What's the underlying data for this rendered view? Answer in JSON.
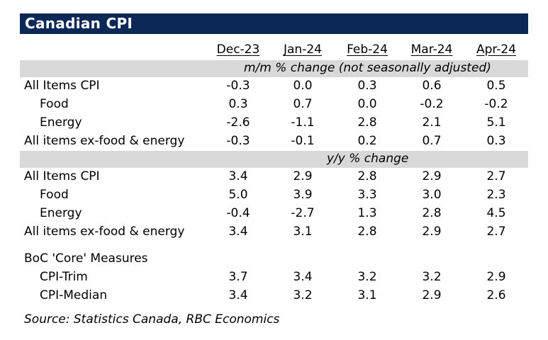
{
  "title": "Canadian CPI",
  "columns": [
    "Dec-23",
    "Jan-24",
    "Feb-24",
    "Mar-24",
    "Apr-24"
  ],
  "sections": [
    {
      "band_label": "m/m % change (not seasonally adjusted)",
      "rows": [
        {
          "label": "All Items CPI",
          "indent": false,
          "values": [
            "-0.3",
            "0.0",
            "0.3",
            "0.6",
            "0.5"
          ]
        },
        {
          "label": "Food",
          "indent": true,
          "values": [
            "0.3",
            "0.7",
            "0.0",
            "-0.2",
            "-0.2"
          ]
        },
        {
          "label": "Energy",
          "indent": true,
          "values": [
            "-2.6",
            "-1.1",
            "2.8",
            "2.1",
            "5.1"
          ]
        },
        {
          "label": "All items ex-food & energy",
          "indent": false,
          "values": [
            "-0.3",
            "-0.1",
            "0.2",
            "0.7",
            "0.3"
          ]
        }
      ]
    },
    {
      "band_label": "y/y % change",
      "rows": [
        {
          "label": "All Items CPI",
          "indent": false,
          "values": [
            "3.4",
            "2.9",
            "2.8",
            "2.9",
            "2.7"
          ]
        },
        {
          "label": "Food",
          "indent": true,
          "values": [
            "5.0",
            "3.9",
            "3.3",
            "3.0",
            "2.3"
          ]
        },
        {
          "label": "Energy",
          "indent": true,
          "values": [
            "-0.4",
            "-2.7",
            "1.3",
            "2.8",
            "4.5"
          ]
        },
        {
          "label": "All items ex-food & energy",
          "indent": false,
          "values": [
            "3.4",
            "3.1",
            "2.8",
            "2.9",
            "2.7"
          ]
        }
      ]
    }
  ],
  "core": {
    "label": "BoC 'Core' Measures",
    "rows": [
      {
        "label": "CPI-Trim",
        "values": [
          "3.7",
          "3.4",
          "3.2",
          "3.2",
          "2.9"
        ]
      },
      {
        "label": "CPI-Median",
        "values": [
          "3.4",
          "3.2",
          "3.1",
          "2.9",
          "2.6"
        ]
      }
    ]
  },
  "source": "Source:  Statistics Canada, RBC Economics"
}
